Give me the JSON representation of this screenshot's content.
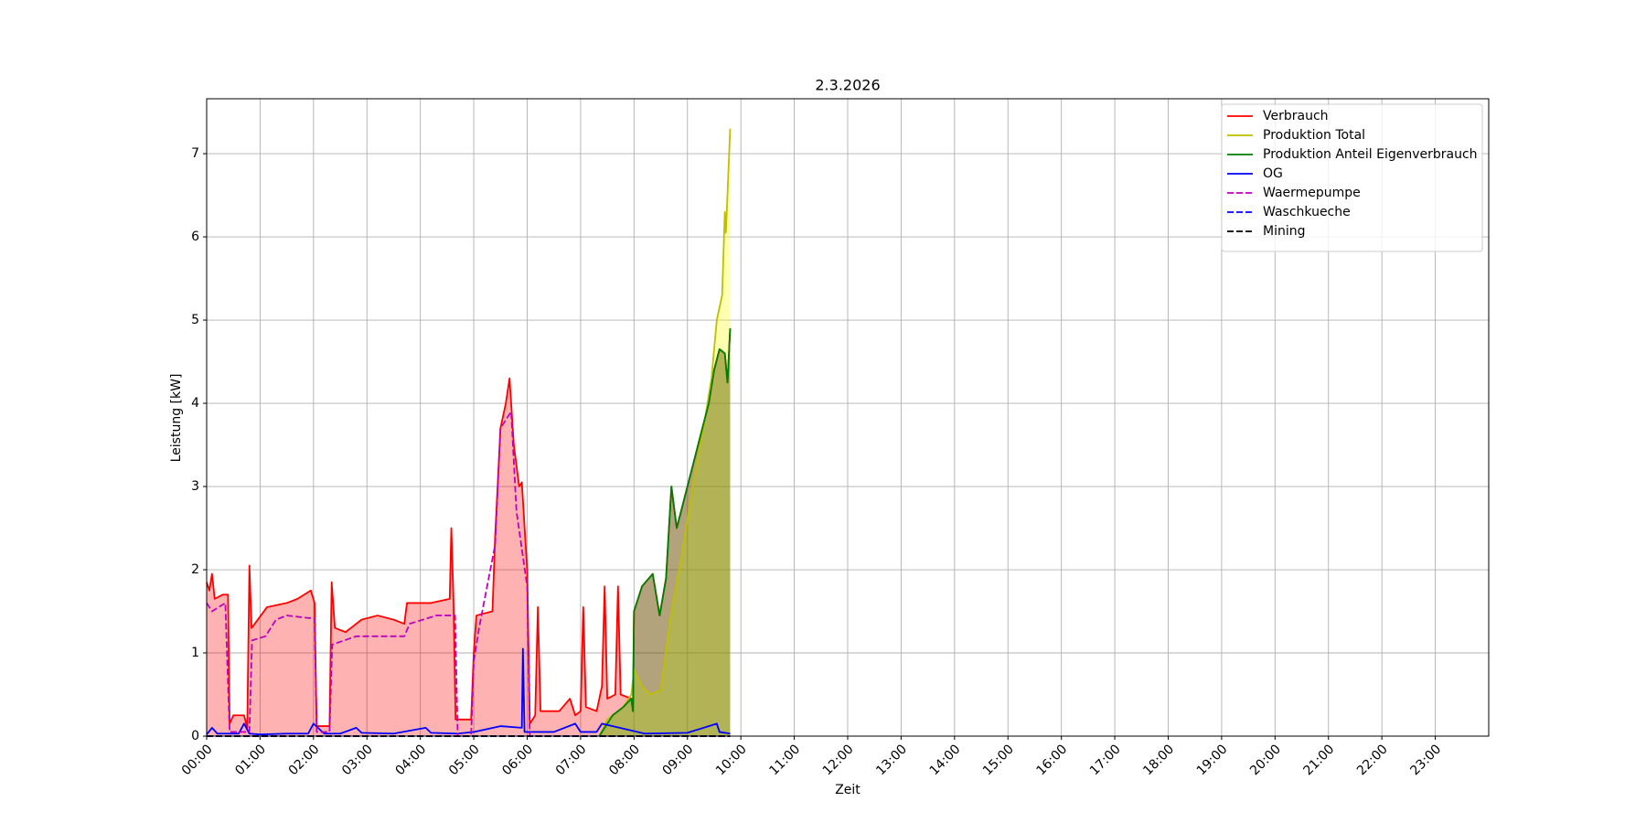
{
  "chart_data": {
    "type": "line",
    "title": "2.3.2026",
    "x_label": "Zeit",
    "y_label": "Leistung [kW]",
    "xlim": [
      0,
      24
    ],
    "ylim": [
      0,
      7.66
    ],
    "xticks": [
      {
        "value": 0,
        "label": "00:00"
      },
      {
        "value": 1,
        "label": "01:00"
      },
      {
        "value": 2,
        "label": "02:00"
      },
      {
        "value": 3,
        "label": "03:00"
      },
      {
        "value": 4,
        "label": "04:00"
      },
      {
        "value": 5,
        "label": "05:00"
      },
      {
        "value": 6,
        "label": "06:00"
      },
      {
        "value": 7,
        "label": "07:00"
      },
      {
        "value": 8,
        "label": "08:00"
      },
      {
        "value": 9,
        "label": "09:00"
      },
      {
        "value": 10,
        "label": "10:00"
      },
      {
        "value": 11,
        "label": "11:00"
      },
      {
        "value": 12,
        "label": "12:00"
      },
      {
        "value": 13,
        "label": "13:00"
      },
      {
        "value": 14,
        "label": "14:00"
      },
      {
        "value": 15,
        "label": "15:00"
      },
      {
        "value": 16,
        "label": "16:00"
      },
      {
        "value": 17,
        "label": "17:00"
      },
      {
        "value": 18,
        "label": "18:00"
      },
      {
        "value": 19,
        "label": "19:00"
      },
      {
        "value": 20,
        "label": "20:00"
      },
      {
        "value": 21,
        "label": "21:00"
      },
      {
        "value": 22,
        "label": "22:00"
      },
      {
        "value": 23,
        "label": "23:00"
      }
    ],
    "yticks": [
      0,
      1,
      2,
      3,
      4,
      5,
      6,
      7
    ],
    "grid": true,
    "legend": "upper right",
    "series": [
      {
        "name": "Verbrauch",
        "color": "#ff0000",
        "style": "solid",
        "fill": true,
        "fill_color": "#ff0000",
        "x": [
          0,
          0.05,
          0.1,
          0.15,
          0.3,
          0.4,
          0.43,
          0.5,
          0.7,
          0.76,
          0.8,
          0.84,
          0.9,
          1.13,
          1.5,
          1.7,
          1.95,
          2.02,
          2.06,
          2.3,
          2.34,
          2.4,
          2.6,
          2.9,
          3.2,
          3.5,
          3.7,
          3.75,
          4.2,
          4.55,
          4.58,
          4.62,
          4.66,
          4.95,
          5.0,
          5.05,
          5.35,
          5.4,
          5.5,
          5.6,
          5.67,
          5.75,
          5.85,
          5.9,
          6.0,
          6.05,
          6.15,
          6.2,
          6.25,
          6.6,
          6.8,
          6.9,
          7.0,
          7.05,
          7.1,
          7.3,
          7.4,
          7.45,
          7.5,
          7.65,
          7.7,
          7.75,
          7.95,
          7.98,
          8.0,
          8.15,
          8.35,
          8.48,
          8.6,
          8.7,
          8.8,
          9.0,
          9.2,
          9.4,
          9.5,
          9.6,
          9.7,
          9.75,
          9.8
        ],
        "values": [
          1.85,
          1.75,
          1.95,
          1.65,
          1.7,
          1.7,
          0.15,
          0.25,
          0.25,
          0.1,
          2.05,
          1.3,
          1.35,
          1.55,
          1.6,
          1.65,
          1.75,
          1.6,
          0.12,
          0.12,
          1.85,
          1.3,
          1.25,
          1.4,
          1.45,
          1.4,
          1.35,
          1.6,
          1.6,
          1.65,
          2.5,
          1.65,
          0.2,
          0.2,
          1.0,
          1.45,
          1.5,
          2.4,
          3.7,
          4.0,
          4.3,
          3.5,
          3.0,
          3.05,
          2.0,
          0.15,
          0.25,
          1.55,
          0.3,
          0.3,
          0.45,
          0.25,
          0.3,
          1.55,
          0.35,
          0.3,
          0.6,
          1.8,
          0.45,
          0.5,
          1.8,
          0.5,
          0.45,
          0.3,
          1.5,
          1.8,
          1.95,
          1.45,
          1.9,
          3.0,
          2.5,
          3.0,
          3.5,
          4.0,
          4.4,
          4.65,
          4.6,
          4.25,
          4.9
        ]
      },
      {
        "name": "Produktion Total",
        "color": "#bfbf00",
        "style": "solid",
        "fill": true,
        "fill_color": "#ffff00",
        "x": [
          7.35,
          7.5,
          7.8,
          7.95,
          8.0,
          8.15,
          8.3,
          8.5,
          8.7,
          8.9,
          9.1,
          9.3,
          9.45,
          9.55,
          9.65,
          9.7,
          9.72,
          9.8
        ],
        "values": [
          0,
          0.2,
          0.35,
          0.5,
          0.8,
          0.6,
          0.5,
          0.55,
          1.5,
          2.2,
          3.0,
          3.7,
          4.3,
          5.0,
          5.3,
          6.3,
          6.05,
          7.3
        ]
      },
      {
        "name": "Produktion Anteil Eigenverbrauch",
        "color": "#008000",
        "style": "solid",
        "fill": true,
        "fill_color": "#008000",
        "x": [
          7.35,
          7.5,
          7.6,
          7.8,
          7.95,
          7.98,
          8.0,
          8.15,
          8.35,
          8.48,
          8.6,
          8.7,
          8.8,
          9.0,
          9.2,
          9.4,
          9.5,
          9.6,
          9.7,
          9.75,
          9.8
        ],
        "values": [
          0,
          0.15,
          0.25,
          0.35,
          0.45,
          0.3,
          1.5,
          1.8,
          1.95,
          1.45,
          1.9,
          3.0,
          2.5,
          3.0,
          3.5,
          4.0,
          4.4,
          4.65,
          4.6,
          4.25,
          4.9
        ]
      },
      {
        "name": "OG",
        "color": "#0000ff",
        "style": "solid",
        "fill": false,
        "x": [
          0,
          0.1,
          0.2,
          0.3,
          0.6,
          0.7,
          0.8,
          1.0,
          1.5,
          1.9,
          2.0,
          2.2,
          2.5,
          2.8,
          2.9,
          3.5,
          4.1,
          4.2,
          4.7,
          5.0,
          5.5,
          5.9,
          5.92,
          5.95,
          6.5,
          6.9,
          7.0,
          7.3,
          7.4,
          8.2,
          9.0,
          9.55,
          9.6,
          9.8
        ],
        "values": [
          0.02,
          0.1,
          0.03,
          0.03,
          0.03,
          0.15,
          0.03,
          0.02,
          0.03,
          0.03,
          0.15,
          0.03,
          0.03,
          0.1,
          0.04,
          0.03,
          0.1,
          0.04,
          0.03,
          0.05,
          0.12,
          0.1,
          1.05,
          0.05,
          0.05,
          0.15,
          0.05,
          0.05,
          0.15,
          0.03,
          0.04,
          0.15,
          0.05,
          0.03
        ]
      },
      {
        "name": "Waermepumpe",
        "color": "#bf00bf",
        "style": "dashed",
        "fill": false,
        "x": [
          0,
          0.1,
          0.35,
          0.43,
          0.8,
          0.85,
          1.1,
          1.3,
          1.5,
          1.9,
          2.02,
          2.06,
          2.3,
          2.35,
          2.8,
          3.7,
          3.8,
          4.3,
          4.65,
          4.7,
          4.95,
          5.0,
          5.1,
          5.4,
          5.5,
          5.7,
          5.8,
          6.0,
          6.05,
          9.8
        ],
        "values": [
          1.6,
          1.5,
          1.6,
          0.05,
          0.05,
          1.15,
          1.2,
          1.4,
          1.45,
          1.42,
          1.42,
          0.05,
          0.05,
          1.1,
          1.2,
          1.2,
          1.35,
          1.45,
          1.45,
          0,
          0,
          0.9,
          1.3,
          2.3,
          3.7,
          3.9,
          2.7,
          1.8,
          0,
          0
        ]
      },
      {
        "name": "Waschkueche",
        "color": "#0000ff",
        "style": "dashed",
        "fill": false,
        "x": [
          0,
          9.8
        ],
        "values": [
          0,
          0
        ]
      },
      {
        "name": "Mining",
        "color": "#000000",
        "style": "dashed",
        "fill": false,
        "x": [
          0,
          9.8
        ],
        "values": [
          0,
          0
        ]
      }
    ]
  }
}
